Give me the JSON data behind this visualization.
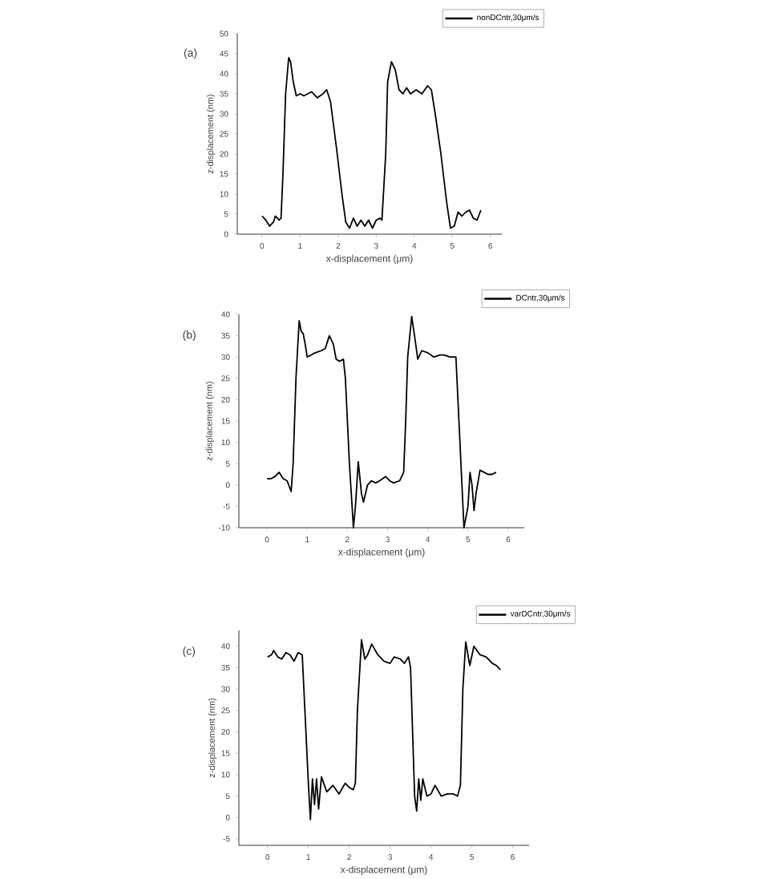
{
  "chart_data": [
    {
      "type": "line",
      "xlabel": "x-displacement (μm)",
      "ylabel": "z-displacement (nm)",
      "annotations": [
        "(a)"
      ],
      "legend": "top right",
      "xlim": [
        -0.65,
        6.3
      ],
      "ylim": [
        0,
        50
      ],
      "xticks": [
        0,
        1,
        2,
        3,
        4,
        5,
        6
      ],
      "yticks": [
        0,
        5,
        10,
        15,
        20,
        25,
        30,
        35,
        40,
        45,
        50
      ],
      "series": [
        {
          "name": "nonDCntr,30μm/s",
          "color": "#000000",
          "x": [
            0,
            0.1,
            0.2,
            0.3,
            0.35,
            0.45,
            0.5,
            0.55,
            0.62,
            0.7,
            0.75,
            0.82,
            0.9,
            1.0,
            1.1,
            1.3,
            1.45,
            1.6,
            1.7,
            1.8,
            1.95,
            2.1,
            2.2,
            2.3,
            2.4,
            2.5,
            2.6,
            2.7,
            2.8,
            2.9,
            3.0,
            3.1,
            3.15,
            3.25,
            3.3,
            3.4,
            3.5,
            3.6,
            3.7,
            3.8,
            3.9,
            4.05,
            4.2,
            4.35,
            4.45,
            4.55,
            4.7,
            4.85,
            4.95,
            5.05,
            5.15,
            5.25,
            5.35,
            5.45,
            5.55,
            5.65,
            5.75
          ],
          "values": [
            4.5,
            3.5,
            2,
            3,
            4.5,
            3.5,
            4,
            15,
            35,
            44,
            43,
            38,
            34.5,
            35,
            34.5,
            35.5,
            34,
            35,
            36,
            33,
            22,
            10,
            3,
            1.5,
            4,
            2,
            3.5,
            2,
            3.5,
            1.5,
            3.5,
            4,
            3.5,
            20,
            38,
            43,
            41,
            36,
            35,
            36.5,
            35,
            36,
            35,
            37,
            36,
            30,
            20,
            8,
            1.5,
            2,
            5.5,
            4.5,
            5.5,
            6,
            4,
            3.5,
            6
          ]
        }
      ]
    },
    {
      "type": "line",
      "xlabel": "x-displacement (μm)",
      "ylabel": "z-displacement (nm)",
      "annotations": [
        "(b)"
      ],
      "legend": "top right",
      "xlim": [
        -0.7,
        6.4
      ],
      "ylim": [
        -10,
        40
      ],
      "xticks": [
        0,
        1,
        2,
        3,
        4,
        5,
        6
      ],
      "yticks": [
        -10,
        -5,
        0,
        5,
        10,
        15,
        20,
        25,
        30,
        35,
        40
      ],
      "series": [
        {
          "name": "DCntr,30μm/s",
          "color": "#000000",
          "x": [
            0,
            0.1,
            0.2,
            0.3,
            0.4,
            0.5,
            0.6,
            0.65,
            0.72,
            0.8,
            0.85,
            0.9,
            0.95,
            1.0,
            1.1,
            1.2,
            1.35,
            1.45,
            1.55,
            1.65,
            1.72,
            1.8,
            1.9,
            1.95,
            2.05,
            2.15,
            2.2,
            2.27,
            2.35,
            2.4,
            2.5,
            2.6,
            2.7,
            2.8,
            2.95,
            3.05,
            3.15,
            3.3,
            3.4,
            3.45,
            3.5,
            3.6,
            3.67,
            3.75,
            3.85,
            4.0,
            4.15,
            4.3,
            4.4,
            4.55,
            4.7,
            4.75,
            4.85,
            4.9,
            5.0,
            5.05,
            5.1,
            5.15,
            5.2,
            5.3,
            5.4,
            5.5,
            5.6,
            5.7
          ],
          "values": [
            1.5,
            1.5,
            2,
            3,
            1.5,
            1,
            -1.5,
            5,
            25,
            38.5,
            36,
            35.5,
            33,
            30,
            30.5,
            31,
            31.5,
            32,
            35,
            33,
            29.5,
            29,
            29.5,
            25,
            5,
            -10,
            -5,
            5.5,
            -2,
            -4,
            0,
            1,
            0.5,
            1,
            2,
            1,
            0.5,
            1,
            3,
            15,
            30,
            39.5,
            35,
            29.5,
            31.5,
            31,
            30,
            30.5,
            30.5,
            30,
            30,
            20,
            0,
            -10,
            -5,
            3,
            0,
            -6,
            -2,
            3.5,
            3,
            2.5,
            2.5,
            3
          ]
        }
      ]
    },
    {
      "type": "line",
      "xlabel": "x-displacement (μm)",
      "ylabel": "z-displacement (nm)",
      "annotations": [
        "(c)"
      ],
      "legend": "top right",
      "xlim": [
        -0.7,
        6.4
      ],
      "ylim": [
        -6.5,
        43.7
      ],
      "xticks": [
        0,
        1,
        2,
        3,
        4,
        5,
        6
      ],
      "yticks": [
        -5,
        0,
        5,
        10,
        15,
        20,
        25,
        30,
        35,
        40
      ],
      "series": [
        {
          "name": "varDCntr,30μm/s",
          "color": "#000000",
          "x": [
            0,
            0.1,
            0.15,
            0.25,
            0.35,
            0.45,
            0.55,
            0.65,
            0.75,
            0.85,
            0.9,
            1.0,
            1.05,
            1.1,
            1.15,
            1.2,
            1.25,
            1.32,
            1.45,
            1.6,
            1.75,
            1.9,
            2.0,
            2.1,
            2.15,
            2.2,
            2.3,
            2.38,
            2.45,
            2.55,
            2.7,
            2.85,
            3.0,
            3.1,
            3.25,
            3.35,
            3.45,
            3.5,
            3.55,
            3.6,
            3.65,
            3.7,
            3.75,
            3.8,
            3.9,
            4.0,
            4.1,
            4.25,
            4.4,
            4.55,
            4.65,
            4.72,
            4.78,
            4.85,
            4.95,
            5.05,
            5.2,
            5.35,
            5.5,
            5.6,
            5.7
          ],
          "values": [
            37.5,
            38,
            39,
            37.5,
            37,
            38.5,
            38,
            36.5,
            38.5,
            38,
            28,
            8,
            -0.5,
            9,
            3,
            9,
            2,
            9.5,
            6,
            7.5,
            5.5,
            8,
            7,
            6.5,
            8,
            25,
            41.5,
            37,
            38,
            40.5,
            38,
            36.5,
            36,
            37.5,
            37,
            36,
            37.5,
            35,
            20,
            5,
            1.5,
            9,
            4,
            9,
            5,
            5.5,
            7.5,
            5,
            5.5,
            5.5,
            5,
            7.5,
            30,
            41,
            35.5,
            40,
            38,
            37.5,
            36,
            35.5,
            34.5
          ]
        }
      ]
    }
  ]
}
